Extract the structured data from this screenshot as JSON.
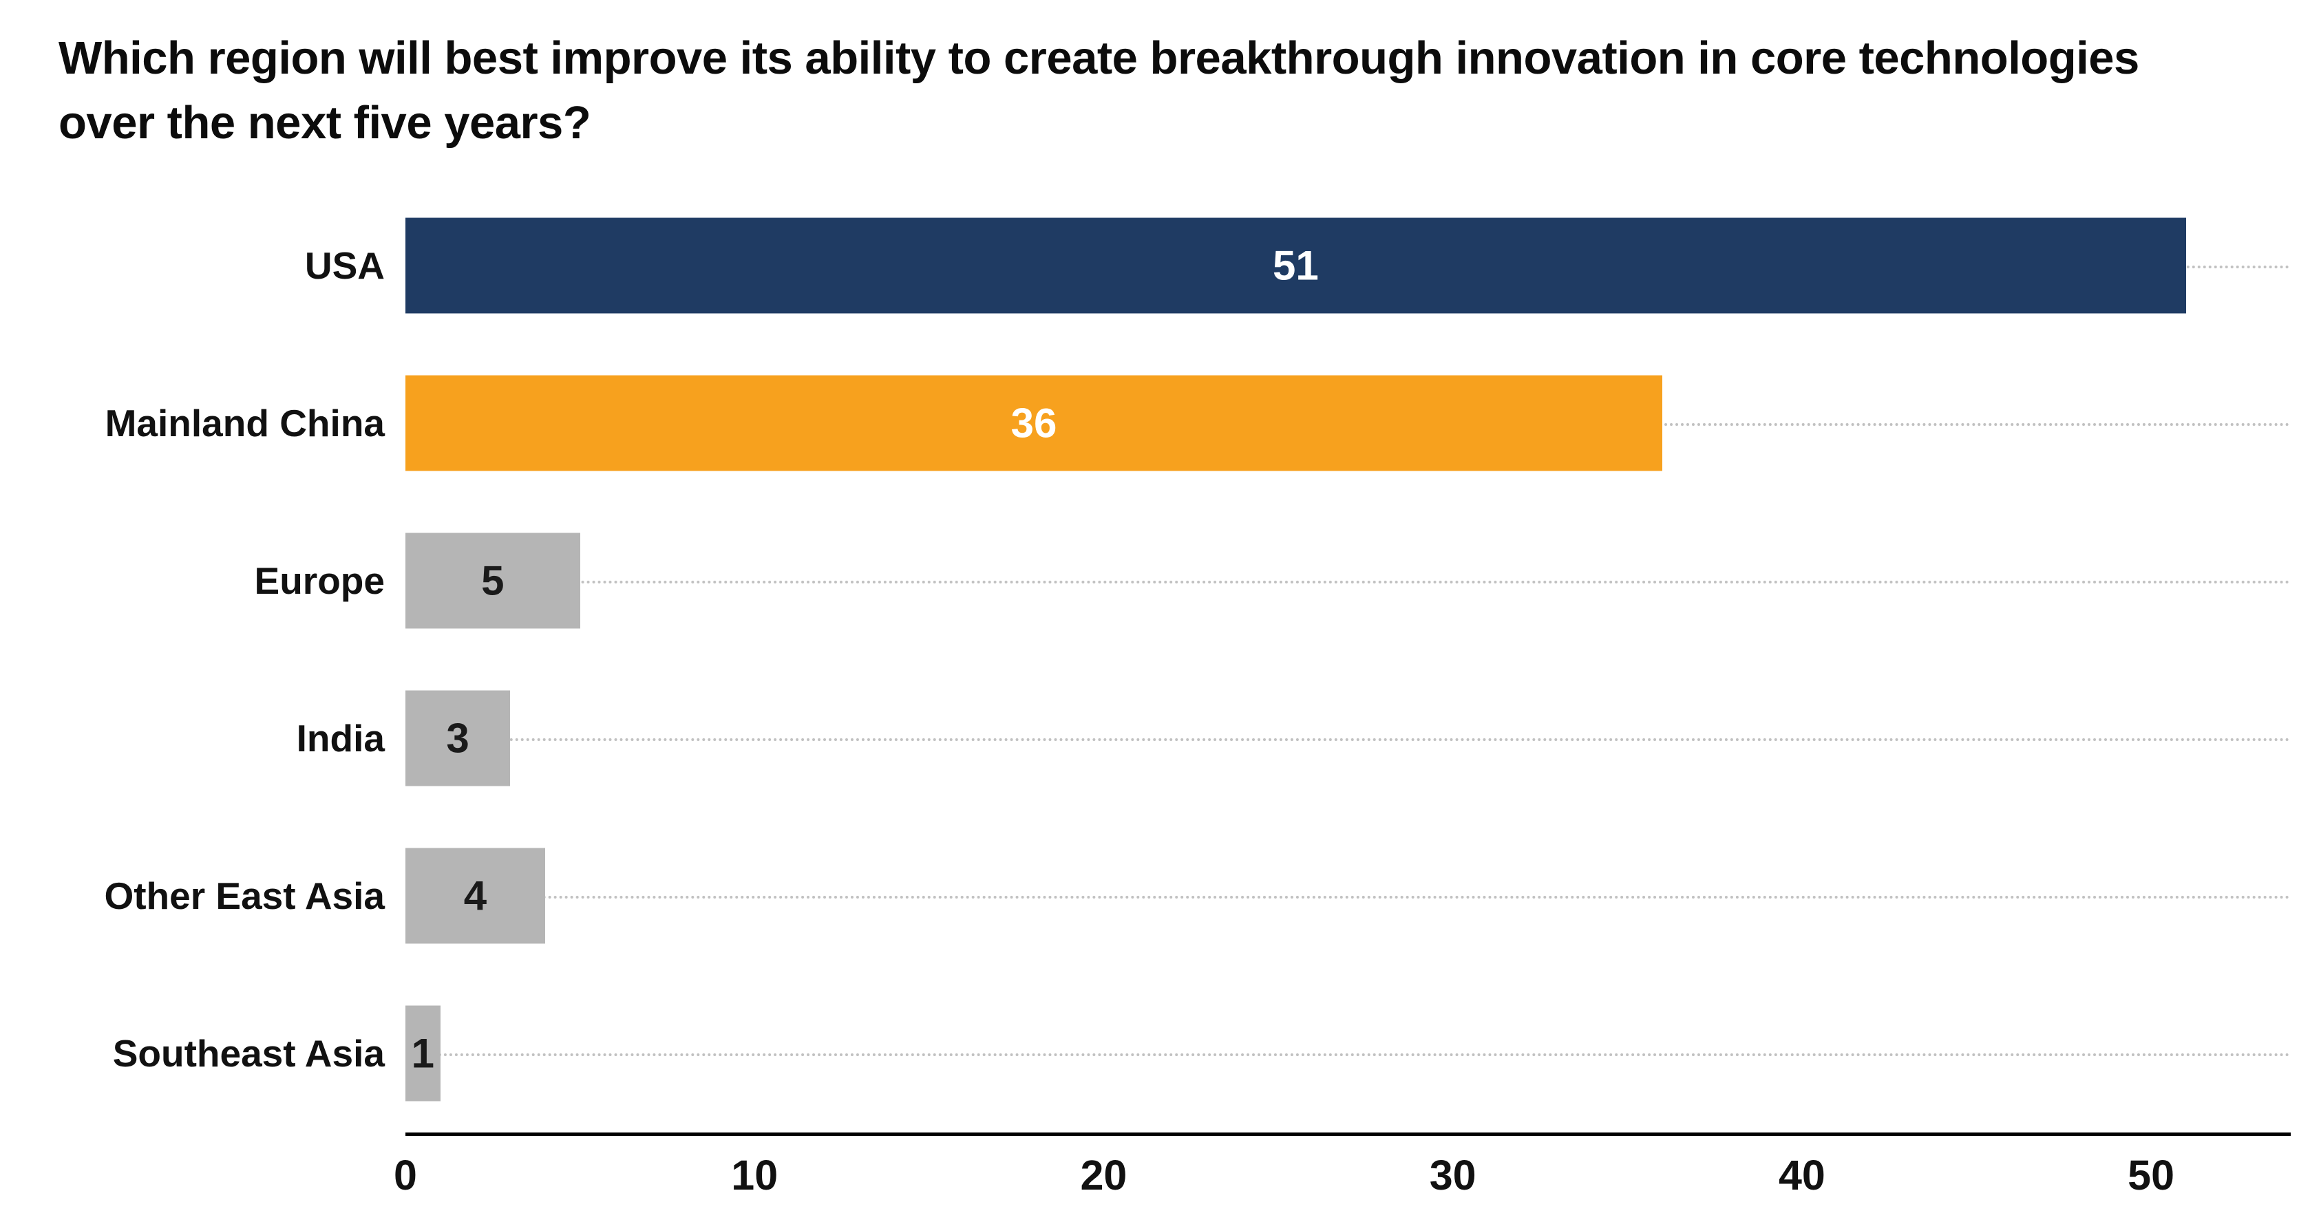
{
  "title": "Which region will best improve its ability to create breakthrough innovation in core technologies over the next five years?",
  "chart_data": {
    "type": "bar",
    "orientation": "horizontal",
    "title": "Which region will best improve its ability to create breakthrough innovation in core technologies over the next five years?",
    "categories": [
      "USA",
      "Mainland China",
      "Europe",
      "India",
      "Other East Asia",
      "Southeast Asia"
    ],
    "values": [
      51,
      36,
      5,
      3,
      4,
      1
    ],
    "bar_colors": [
      "#1f3b63",
      "#f7a11e",
      "#b5b5b5",
      "#b5b5b5",
      "#b5b5b5",
      "#b5b5b5"
    ],
    "value_label_colors": [
      "#ffffff",
      "#ffffff",
      "#1a1a1a",
      "#1a1a1a",
      "#1a1a1a",
      "#1a1a1a"
    ],
    "x_ticks": [
      0,
      10,
      20,
      30,
      40,
      50
    ],
    "xlim": [
      0,
      54
    ],
    "xlabel": "",
    "ylabel": "",
    "grid": "dotted horizontal line per row",
    "legend": "none"
  }
}
